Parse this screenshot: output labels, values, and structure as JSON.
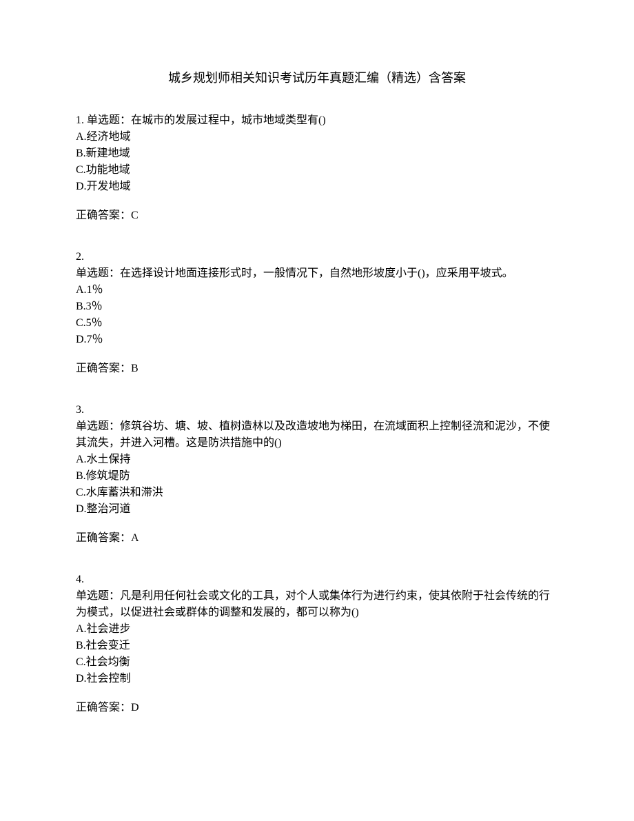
{
  "title": "城乡规划师相关知识考试历年真题汇编（精选）含答案",
  "questions": [
    {
      "number": "1.",
      "numberInline": true,
      "text": "单选题：在城市的发展过程中，城市地域类型有()",
      "options": [
        "A.经济地域",
        "B.新建地域",
        "C.功能地域",
        "D.开发地域"
      ],
      "answer": "正确答案：C"
    },
    {
      "number": "2.",
      "numberInline": false,
      "text": "单选题：在选择设计地面连接形式时，一般情况下，自然地形坡度小于()，应采用平坡式。",
      "options": [
        "A.1％",
        "B.3％",
        "C.5％",
        "D.7％"
      ],
      "answer": "正确答案：B"
    },
    {
      "number": "3.",
      "numberInline": false,
      "text": "单选题：修筑谷坊、塘、坡、植树造林以及改造坡地为梯田，在流域面积上控制径流和泥沙，不使其流失，并进入河槽。这是防洪措施中的()",
      "options": [
        "A.水土保持",
        "B.修筑堤防",
        "C.水库蓄洪和滞洪",
        "D.整治河道"
      ],
      "answer": "正确答案：A"
    },
    {
      "number": "4.",
      "numberInline": false,
      "text": "单选题：凡是利用任何社会或文化的工具，对个人或集体行为进行约束，使其依附于社会传统的行为模式，以促进社会或群体的调整和发展的，都可以称为()",
      "options": [
        "A.社会进步",
        "B.社会变迁",
        "C.社会均衡",
        "D.社会控制"
      ],
      "answer": "正确答案：D"
    }
  ]
}
